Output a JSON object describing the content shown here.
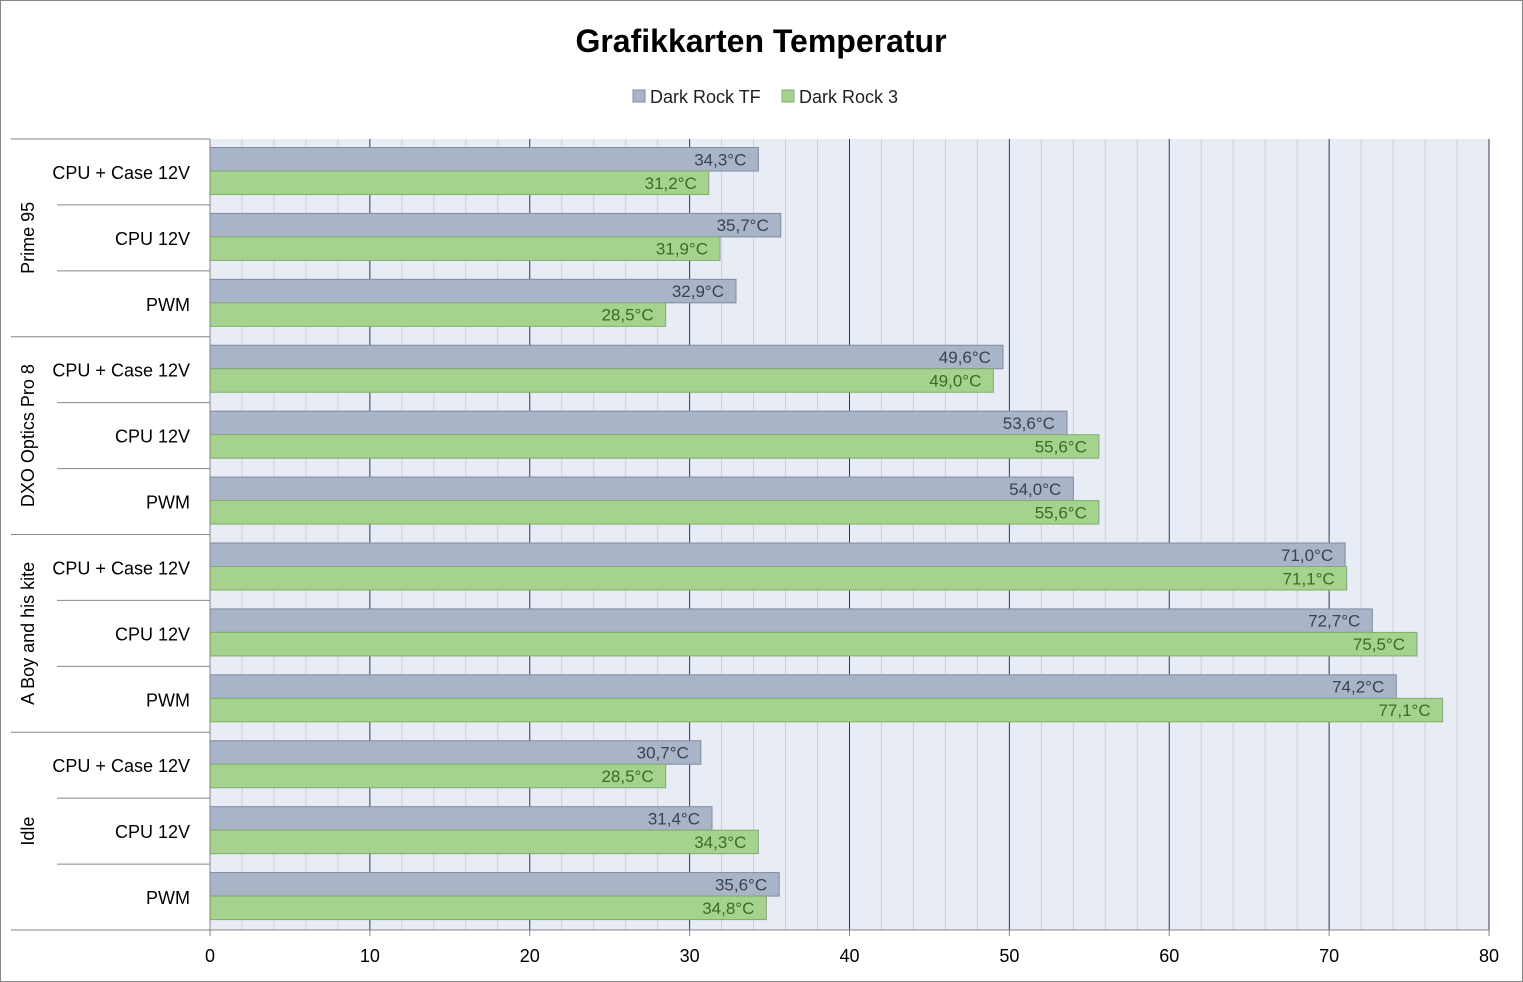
{
  "chart_data": {
    "type": "bar",
    "orientation": "horizontal",
    "title": "Grafikkarten Temperatur",
    "legend_position": "top",
    "xlim": [
      0,
      80
    ],
    "x_ticks": [
      0,
      10,
      20,
      30,
      40,
      50,
      60,
      70,
      80
    ],
    "grid": true,
    "groups": [
      {
        "name": "Prime 95",
        "categories": [
          "CPU + Case 12V",
          "CPU 12V",
          "PWM"
        ]
      },
      {
        "name": "DXO Optics Pro 8",
        "categories": [
          "CPU + Case 12V",
          "CPU 12V",
          "PWM"
        ]
      },
      {
        "name": "A Boy and his kite",
        "categories": [
          "CPU + Case 12V",
          "CPU 12V",
          "PWM"
        ]
      },
      {
        "name": "Idle",
        "categories": [
          "CPU + Case 12V",
          "CPU 12V",
          "PWM"
        ]
      }
    ],
    "series": [
      {
        "name": "Dark Rock TF",
        "color": "#a9b4c9",
        "values": [
          34.3,
          35.7,
          32.9,
          49.6,
          53.6,
          54.0,
          71.0,
          72.7,
          74.2,
          30.7,
          31.4,
          35.6
        ],
        "labels": [
          "34,3°C",
          "35,7°C",
          "32,9°C",
          "49,6°C",
          "53,6°C",
          "54,0°C",
          "71,0°C",
          "72,7°C",
          "74,2°C",
          "30,7°C",
          "31,4°C",
          "35,6°C"
        ]
      },
      {
        "name": "Dark Rock 3",
        "color": "#a6d28f",
        "values": [
          31.2,
          31.9,
          28.5,
          49.0,
          55.6,
          55.6,
          71.1,
          75.5,
          77.1,
          28.5,
          34.3,
          34.8
        ],
        "labels": [
          "31,2°C",
          "31,9°C",
          "28,5°C",
          "49,0°C",
          "55,6°C",
          "55,6°C",
          "71,1°C",
          "75,5°C",
          "77,1°C",
          "28,5°C",
          "34,3°C",
          "34,8°C"
        ]
      }
    ]
  }
}
